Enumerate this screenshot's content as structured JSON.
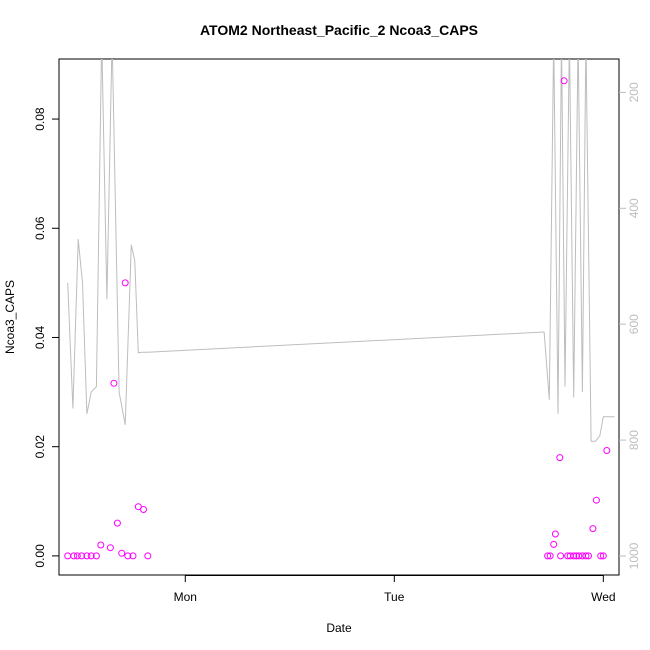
{
  "chart_data": {
    "type": "scatter",
    "title": "ATOM2 Northeast_Pacific_2 Ncoa3_CAPS",
    "xlabel": "Date",
    "ylabel": "Ncoa3_CAPS",
    "x_ticks": [
      "Mon",
      "Tue",
      "Wed"
    ],
    "y_ticks": [
      "0.00",
      "0.02",
      "0.04",
      "0.06",
      "0.08"
    ],
    "right_ticks": [
      "200",
      "400",
      "600",
      "800",
      "1000"
    ],
    "xlim_hours": [
      -14.5,
      49.8
    ],
    "ylim": [
      -0.0035,
      0.091
    ],
    "right_lim": [
      -0.0035,
      0.091
    ],
    "colors": {
      "points": "#ff00ff",
      "line": "#bdbdbd",
      "axis": "#000000",
      "right_axis": "#bdbdbd"
    },
    "points_series": {
      "name": "",
      "x_hours": [
        -13.5,
        -12.8,
        -12.4,
        -11.9,
        -11.3,
        -10.8,
        -10.2,
        -9.7,
        -8.6,
        -8.2,
        -7.8,
        -7.3,
        -6.9,
        -6.6,
        -6.0,
        -5.4,
        -4.8,
        -4.3,
        41.6,
        41.9,
        42.3,
        42.5,
        43.0,
        43.1,
        43.5,
        43.9,
        44.2,
        44.6,
        44.9,
        45.2,
        45.6,
        46.0,
        46.3,
        46.8,
        47.2,
        47.7,
        48.0,
        48.4
      ],
      "values": [
        0.0,
        0.0,
        0.0,
        0.0,
        0.0,
        0.0,
        0.0,
        0.002,
        0.0015,
        0.0316,
        0.006,
        0.0005,
        0.05,
        0.0,
        0.0,
        0.009,
        0.0085,
        0.0,
        0.0,
        0.0,
        0.0021,
        0.004,
        0.018,
        0.0,
        0.087,
        0.0,
        0.0,
        0.0,
        0.0,
        0.0,
        0.0,
        0.0,
        0.0,
        0.005,
        0.0102,
        0.0,
        0.0,
        0.0193
      ]
    },
    "line_series": {
      "name": "",
      "x_hours": [
        -13.5,
        -12.9,
        -12.3,
        -11.8,
        -11.3,
        -10.8,
        -10.2,
        -9.6,
        -9.0,
        -8.4,
        -7.6,
        -6.9,
        -6.2,
        -5.8,
        -5.4,
        -5.0,
        -4.6,
        -4.3,
        41.2,
        41.8,
        42.3,
        42.8,
        43.2,
        43.6,
        44.1,
        44.6,
        45.1,
        45.6,
        46.0,
        46.6,
        47.1,
        47.6,
        48.0,
        48.4,
        48.8,
        49.3
      ],
      "values": [
        0.05,
        0.027,
        0.058,
        0.05,
        0.026,
        0.03,
        0.031,
        0.095,
        0.047,
        0.095,
        0.03,
        0.024,
        0.057,
        0.054,
        0.0372,
        0.0373,
        0.0373,
        0.0373,
        0.041,
        0.0286,
        0.095,
        0.026,
        0.095,
        0.031,
        0.095,
        0.029,
        0.095,
        0.03,
        0.095,
        0.021,
        0.021,
        0.022,
        0.0255,
        0.0255,
        0.0255,
        0.0255
      ]
    }
  }
}
